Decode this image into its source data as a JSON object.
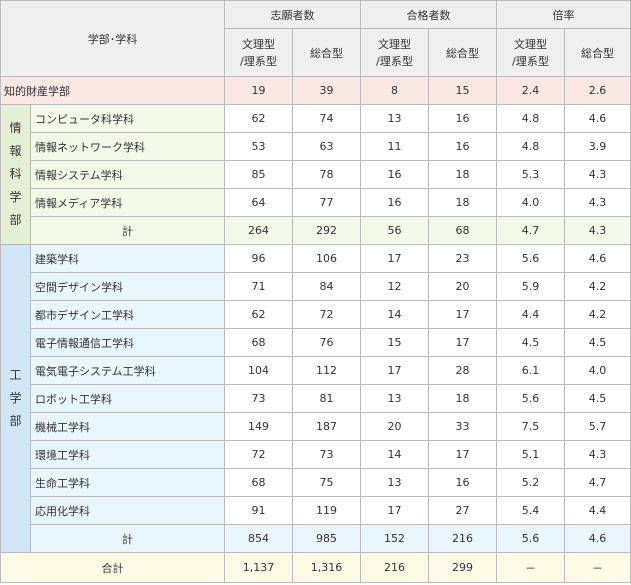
{
  "header": {
    "dept_label": "学部･学科",
    "groups": [
      "志願者数",
      "合格者数",
      "倍率"
    ],
    "sub_left_line1": "文理型",
    "sub_left_line2": "/理系型",
    "sub_right": "総合型"
  },
  "ip": {
    "name": "知的財産学部",
    "values": [
      "19",
      "39",
      "8",
      "15",
      "2.4",
      "2.6"
    ]
  },
  "johoka": {
    "faculty_chars": [
      "情",
      "報",
      "科",
      "学",
      "部"
    ],
    "rows": [
      {
        "name": "コンピュータ科学科",
        "values": [
          "62",
          "74",
          "13",
          "16",
          "4.8",
          "4.6"
        ]
      },
      {
        "name": "情報ネットワーク学科",
        "values": [
          "53",
          "63",
          "11",
          "16",
          "4.8",
          "3.9"
        ]
      },
      {
        "name": "情報システム学科",
        "values": [
          "85",
          "78",
          "16",
          "18",
          "5.3",
          "4.3"
        ]
      },
      {
        "name": "情報メディア学科",
        "values": [
          "64",
          "77",
          "16",
          "18",
          "4.0",
          "4.3"
        ]
      }
    ],
    "subtotal_label": "計",
    "subtotal": [
      "264",
      "292",
      "56",
      "68",
      "4.7",
      "4.3"
    ]
  },
  "kogaku": {
    "faculty_chars": [
      "工",
      "学",
      "部"
    ],
    "rows": [
      {
        "name": "建築学科",
        "values": [
          "96",
          "106",
          "17",
          "23",
          "5.6",
          "4.6"
        ]
      },
      {
        "name": "空間デザイン学科",
        "values": [
          "71",
          "84",
          "12",
          "20",
          "5.9",
          "4.2"
        ]
      },
      {
        "name": "都市デザイン工学科",
        "values": [
          "62",
          "72",
          "14",
          "17",
          "4.4",
          "4.2"
        ]
      },
      {
        "name": "電子情報通信工学科",
        "values": [
          "68",
          "76",
          "15",
          "17",
          "4.5",
          "4.5"
        ]
      },
      {
        "name": "電気電子システム工学科",
        "values": [
          "104",
          "112",
          "17",
          "28",
          "6.1",
          "4.0"
        ]
      },
      {
        "name": "ロボット工学科",
        "values": [
          "73",
          "81",
          "13",
          "18",
          "5.6",
          "4.5"
        ]
      },
      {
        "name": "機械工学科",
        "values": [
          "149",
          "187",
          "20",
          "33",
          "7.5",
          "5.7"
        ]
      },
      {
        "name": "環境工学科",
        "values": [
          "72",
          "73",
          "14",
          "17",
          "5.1",
          "4.3"
        ]
      },
      {
        "name": "生命工学科",
        "values": [
          "68",
          "75",
          "13",
          "16",
          "5.2",
          "4.7"
        ]
      },
      {
        "name": "応用化学科",
        "values": [
          "91",
          "119",
          "17",
          "27",
          "5.4",
          "4.4"
        ]
      }
    ],
    "subtotal_label": "計",
    "subtotal": [
      "854",
      "985",
      "152",
      "216",
      "5.6",
      "4.6"
    ]
  },
  "total": {
    "label": "合計",
    "values": [
      "1,137",
      "1,316",
      "216",
      "299",
      "－",
      "－"
    ]
  }
}
